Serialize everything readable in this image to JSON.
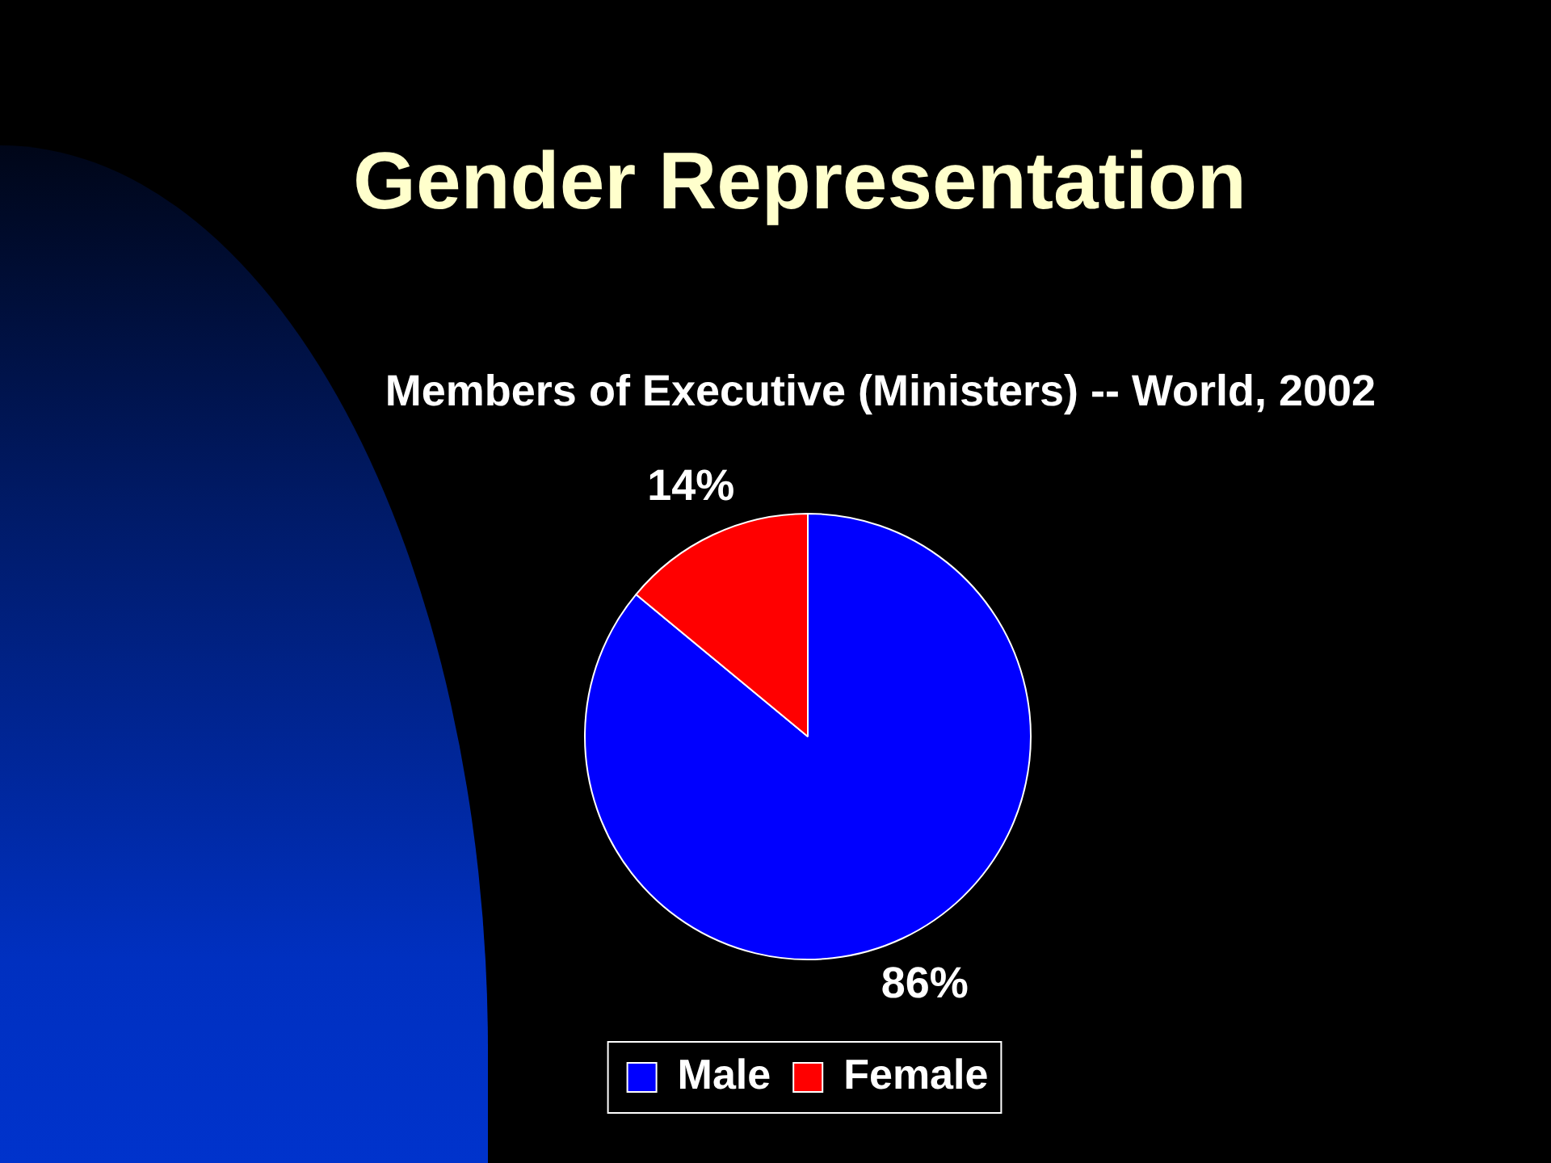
{
  "chart_data": {
    "type": "pie",
    "title": "Gender Representation",
    "subtitle": "Members of Executive (Ministers) -- World, 2002",
    "categories": [
      "Male",
      "Female"
    ],
    "values": [
      86,
      14
    ],
    "colors": [
      "#0000ff",
      "#ff0000"
    ],
    "value_labels": [
      "86%",
      "14%"
    ],
    "legend": "bottom"
  }
}
